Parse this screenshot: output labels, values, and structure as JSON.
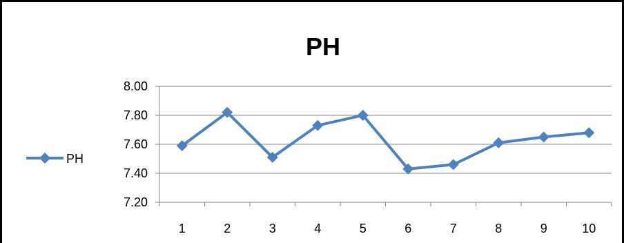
{
  "chart_data": {
    "type": "line",
    "title": "PH",
    "xlabel": "",
    "ylabel": "",
    "categories": [
      "1",
      "2",
      "3",
      "4",
      "5",
      "6",
      "7",
      "8",
      "9",
      "10"
    ],
    "series": [
      {
        "name": "PH",
        "values": [
          7.59,
          7.82,
          7.51,
          7.73,
          7.8,
          7.43,
          7.46,
          7.61,
          7.65,
          7.68
        ],
        "color": "#4F81BD"
      }
    ],
    "ylim": [
      7.2,
      8.0
    ],
    "yticks": [
      "8.00",
      "7.80",
      "7.60",
      "7.40",
      "7.20"
    ],
    "grid": true,
    "legend_position": "left",
    "marker": "diamond"
  }
}
